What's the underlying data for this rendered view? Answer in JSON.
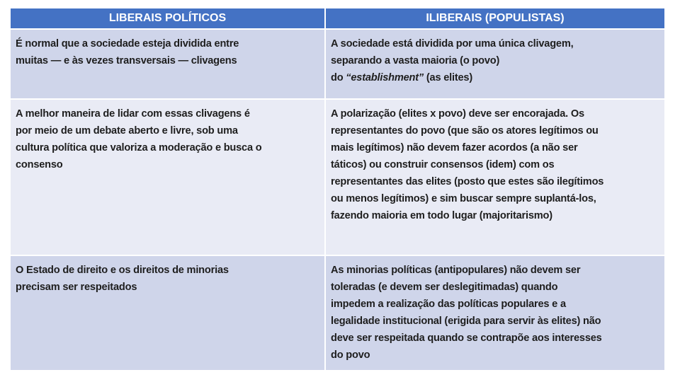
{
  "colors": {
    "header": "#4472C4",
    "row_odd": "#CFD5EA",
    "row_even": "#E9EBF5"
  },
  "headers": [
    "LIBERAIS POLÍTICOS",
    "ILIBERAIS (POPULISTAS)"
  ],
  "rows": [
    {
      "left": [
        "É normal que a sociedade esteja dividida entre",
        "muitas — e às vezes transversais — clivagens"
      ],
      "right": [
        "A sociedade está dividida por uma única clivagem,",
        "separando a vasta maioria (o povo)"
      ],
      "right_last": {
        "pre": "do ",
        "italic": "“establishment”",
        "post": " (as elites)"
      }
    },
    {
      "left": [
        "A melhor maneira de lidar com essas clivagens é",
        "por meio de um debate aberto e livre, sob uma",
        "cultura política que valoriza a moderação e busca o",
        "consenso"
      ],
      "right": [
        "A polarização (elites x povo) deve ser encorajada. Os",
        "representantes do povo (que são os atores legítimos ou",
        "mais legítimos) não devem fazer acordos (a não ser",
        "táticos) ou construir consensos (idem) com os",
        "representantes das elites (posto que estes são ilegítimos",
        "ou menos legítimos) e sim buscar sempre suplantá-los,",
        "fazendo maioria em todo lugar (majoritarismo)"
      ]
    },
    {
      "left": [
        "O Estado de direito e os direitos de minorias",
        "precisam ser respeitados"
      ],
      "right": [
        "As minorias políticas (antipopulares) não devem ser",
        "toleradas (e devem ser deslegitimadas) quando",
        "impedem a realização das políticas populares e a",
        "legalidade institucional (erigida para servir às elites) não",
        "deve ser respeitada quando se contrapõe aos interesses",
        "do povo"
      ]
    }
  ]
}
